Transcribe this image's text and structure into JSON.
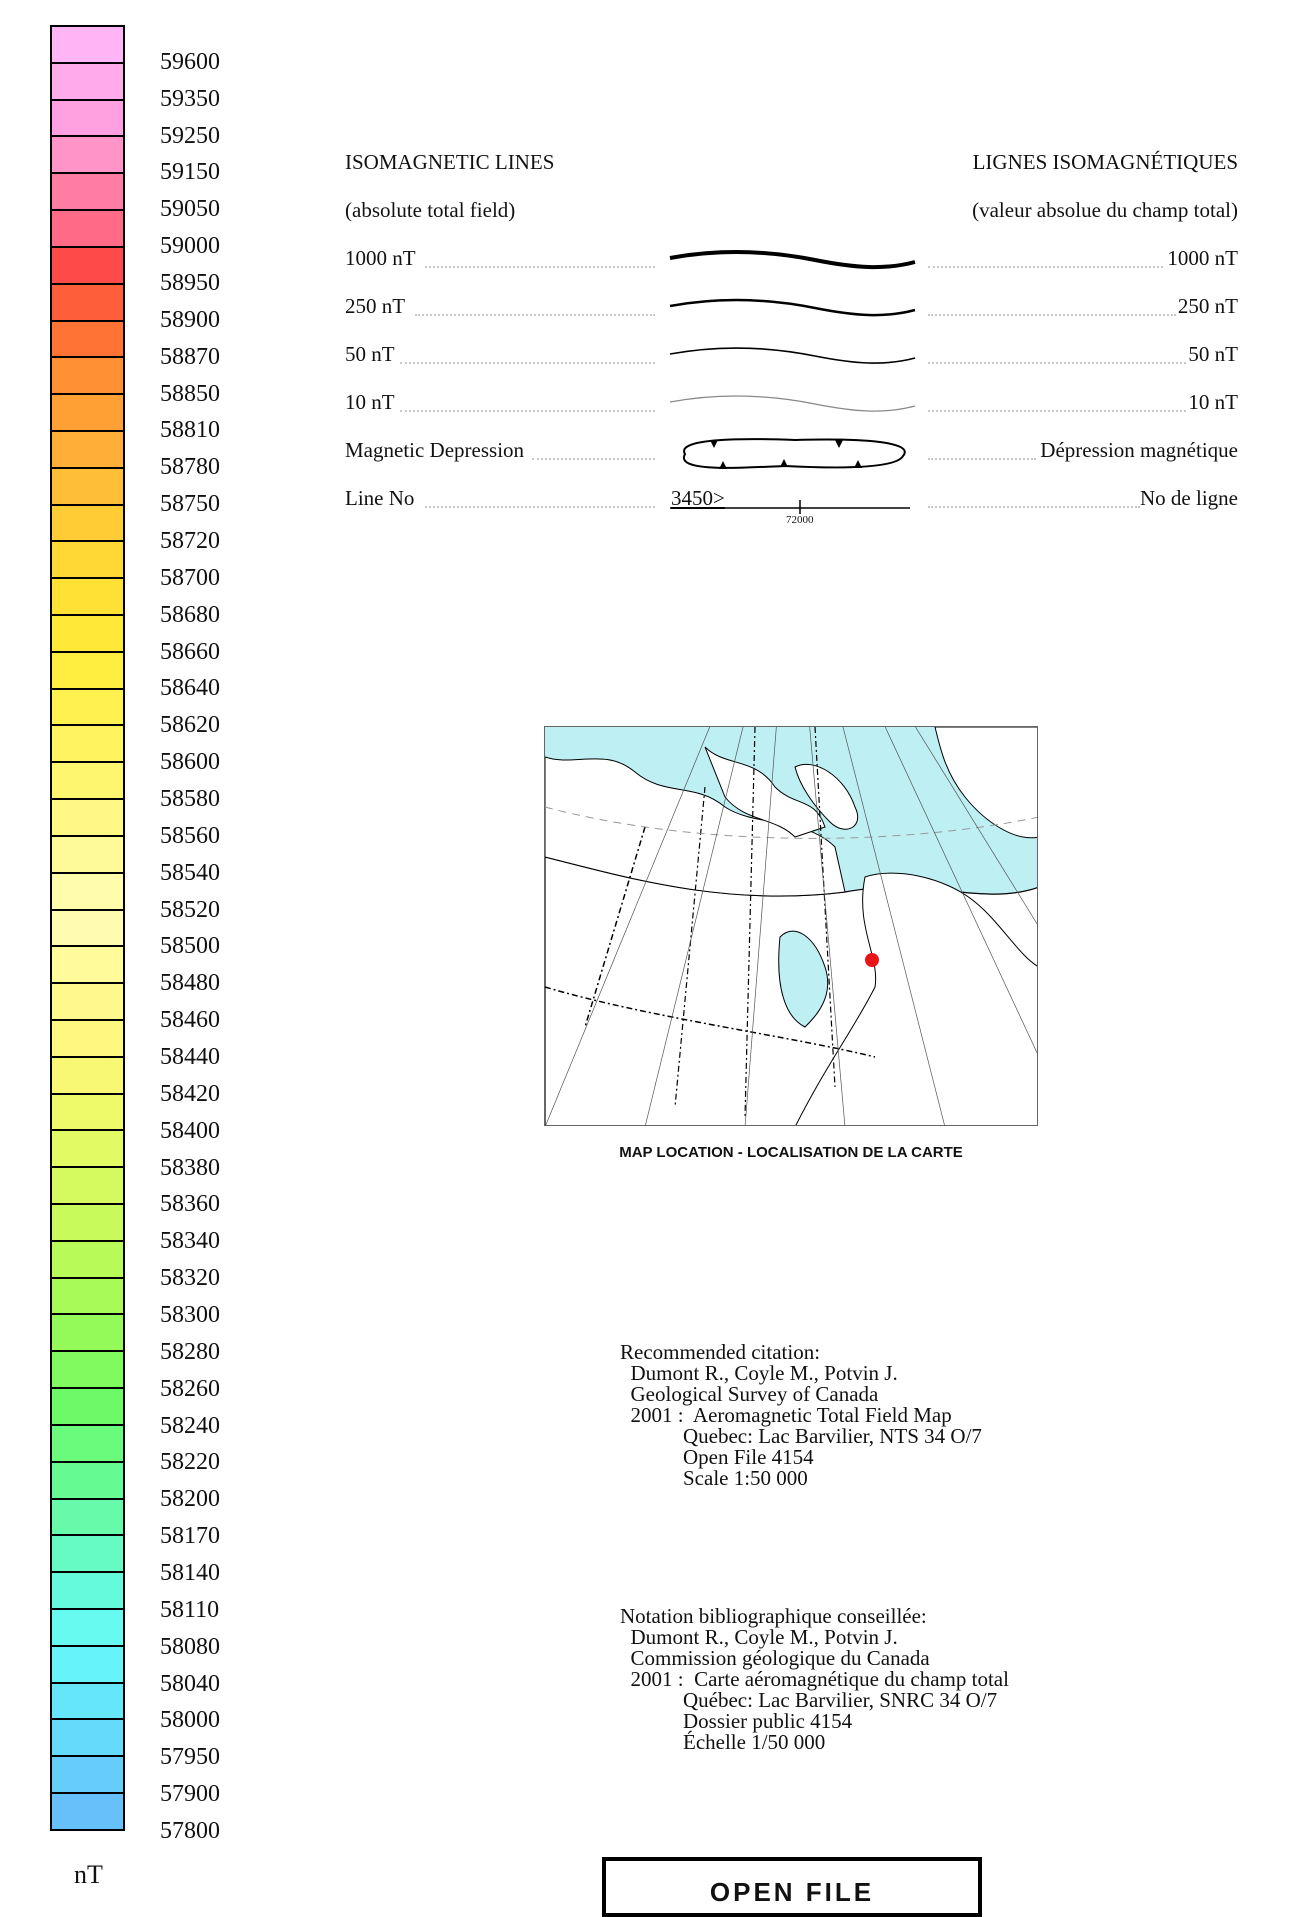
{
  "colorbar": {
    "unit": "nT",
    "labels": [
      "59600",
      "59350",
      "59250",
      "59150",
      "59050",
      "59000",
      "58950",
      "58900",
      "58870",
      "58850",
      "58810",
      "58780",
      "58750",
      "58720",
      "58700",
      "58680",
      "58660",
      "58640",
      "58620",
      "58600",
      "58580",
      "58560",
      "58540",
      "58520",
      "58500",
      "58480",
      "58460",
      "58440",
      "58420",
      "58400",
      "58380",
      "58360",
      "58340",
      "58320",
      "58300",
      "58280",
      "58260",
      "58240",
      "58220",
      "58200",
      "58170",
      "58140",
      "58110",
      "58080",
      "58040",
      "58000",
      "57950",
      "57900",
      "57800"
    ],
    "colors": [
      "#ffb4f5",
      "#ffaaeb",
      "#ffa0e0",
      "#ff94c8",
      "#ff7ca4",
      "#ff6a86",
      "#ff4a4a",
      "#ff5e3a",
      "#ff7434",
      "#ff9034",
      "#ffa034",
      "#ffae38",
      "#ffbe38",
      "#ffcc36",
      "#ffd836",
      "#ffe034",
      "#ffe838",
      "#ffee40",
      "#fff250",
      "#fff460",
      "#fff670",
      "#fff884",
      "#fffa98",
      "#fffcac",
      "#fffbb0",
      "#fffa9a",
      "#fff88c",
      "#fff880",
      "#f8f874",
      "#eefa6a",
      "#e2fa64",
      "#d4fa60",
      "#c8fa5c",
      "#b8fa58",
      "#a8fa56",
      "#94fa5a",
      "#80fa5e",
      "#6cfa66",
      "#6afa7c",
      "#66fa92",
      "#66faaa",
      "#66fac4",
      "#66fadc",
      "#66faf0",
      "#66f4fa",
      "#66e6fa",
      "#66dafa",
      "#66ccfa",
      "#66c0fa"
    ]
  },
  "legend": {
    "title_en": "ISOMAGNETIC LINES",
    "title_fr": "LIGNES ISOMAGNÉTIQUES",
    "subtitle_en": "(absolute total field)",
    "subtitle_fr": "(valeur absolue du champ total)",
    "rows": [
      {
        "en": "1000 nT",
        "fr": "1000 nT"
      },
      {
        "en": "250 nT",
        "fr": "250 nT"
      },
      {
        "en": "50 nT",
        "fr": "50 nT"
      },
      {
        "en": "10 nT",
        "fr": "10 nT"
      },
      {
        "en": "Magnetic Depression",
        "fr": "Dépression magnétique"
      },
      {
        "en": "Line No",
        "fr": "No de ligne"
      }
    ],
    "line_no_example": "3450>",
    "line_no_tick": "72000"
  },
  "map": {
    "caption": "MAP LOCATION - LOCALISATION DE LA CARTE",
    "marker_color": "#e8141a",
    "water_color": "#bdeff3"
  },
  "citation_en": [
    "Recommended citation:",
    "  Dumont R., Coyle M., Potvin J.",
    "  Geological Survey of Canada",
    "  2001 :  Aeromagnetic Total Field Map",
    "            Quebec: Lac Barvilier, NTS 34 O/7",
    "            Open File 4154",
    "            Scale 1:50 000"
  ],
  "citation_fr": [
    "Notation bibliographique conseillée:",
    "  Dumont R., Coyle M., Potvin J.",
    "  Commission géologique du Canada",
    "  2001 :  Carte aéromagnétique du champ total",
    "            Québec: Lac Barvilier, SNRC 34 O/7",
    "            Dossier public 4154",
    "            Échelle 1/50 000"
  ],
  "open_file_label": "OPEN FILE"
}
